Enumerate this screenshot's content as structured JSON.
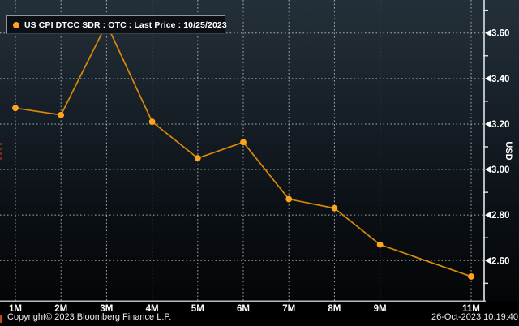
{
  "legend": {
    "label": "US CPI DTCC SDR : OTC : Last Price : 10/25/2023"
  },
  "footer": {
    "copyright": "Copyright© 2023 Bloomberg Finance L.P.",
    "timestamp": "26-Oct-2023 10:19:40"
  },
  "chart_data": {
    "type": "line",
    "title": "US CPI DTCC SDR : OTC : Last Price : 10/25/2023",
    "categories": [
      "1M",
      "2M",
      "3M",
      "4M",
      "5M",
      "6M",
      "7M",
      "8M",
      "9M",
      "11M"
    ],
    "x_months": [
      1,
      2,
      3,
      4,
      5,
      6,
      7,
      8,
      9,
      11
    ],
    "values": [
      3.27,
      3.24,
      3.64,
      3.21,
      3.05,
      3.12,
      2.87,
      2.83,
      2.67,
      2.53
    ],
    "ylabel": "USD",
    "xlabel": "",
    "ylim": [
      2.42,
      3.74
    ],
    "y_major_ticks": [
      "2.60",
      "2.80",
      "3.00",
      "3.20",
      "3.40",
      "3.60"
    ],
    "y_minor_ticks": [
      "2.50",
      "2.70",
      "2.90",
      "3.10",
      "3.30",
      "3.50",
      "3.70"
    ],
    "grid": "dotted",
    "legend_position": "top-left",
    "axis_side": "right",
    "colors": {
      "line": "#d98a08",
      "marker": "#ffa41f",
      "grid": "#c9cfd4",
      "axis": "#b6bcc1",
      "text": "#ffffff",
      "bg_top": "#243039",
      "bg_bottom": "#040506"
    }
  }
}
